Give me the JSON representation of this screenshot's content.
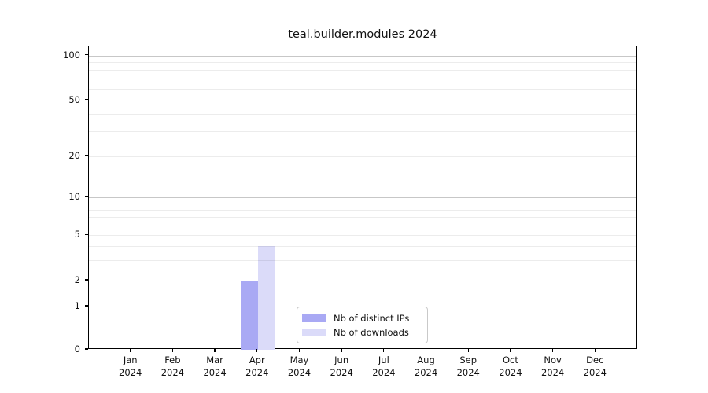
{
  "chart_data": {
    "type": "bar",
    "title": "teal.builder.modules 2024",
    "categories": [
      "Jan",
      "Feb",
      "Mar",
      "Apr",
      "May",
      "Jun",
      "Jul",
      "Aug",
      "Sep",
      "Oct",
      "Nov",
      "Dec"
    ],
    "x_sub_label": "2024",
    "series": [
      {
        "name": "Nb of distinct IPs",
        "color": "#a9a9f4",
        "values": [
          0,
          0,
          0,
          2,
          0,
          0,
          0,
          0,
          0,
          0,
          0,
          0
        ]
      },
      {
        "name": "Nb of downloads",
        "color": "#dbdbf9",
        "values": [
          0,
          0,
          0,
          4,
          0,
          0,
          0,
          0,
          0,
          0,
          0,
          0
        ]
      }
    ],
    "y_axis": {
      "scale": "log-like",
      "tick_values": [
        0,
        1,
        2,
        5,
        10,
        20,
        50,
        100
      ],
      "major_gridlines": [
        1,
        10,
        100
      ],
      "minor_gridlines": [
        2,
        3,
        4,
        5,
        6,
        7,
        8,
        9,
        20,
        30,
        40,
        50,
        60,
        70,
        80,
        90
      ],
      "range": [
        0,
        115
      ]
    },
    "xlabel": "",
    "ylabel": "",
    "grid": true,
    "legend_position": "lower center"
  }
}
